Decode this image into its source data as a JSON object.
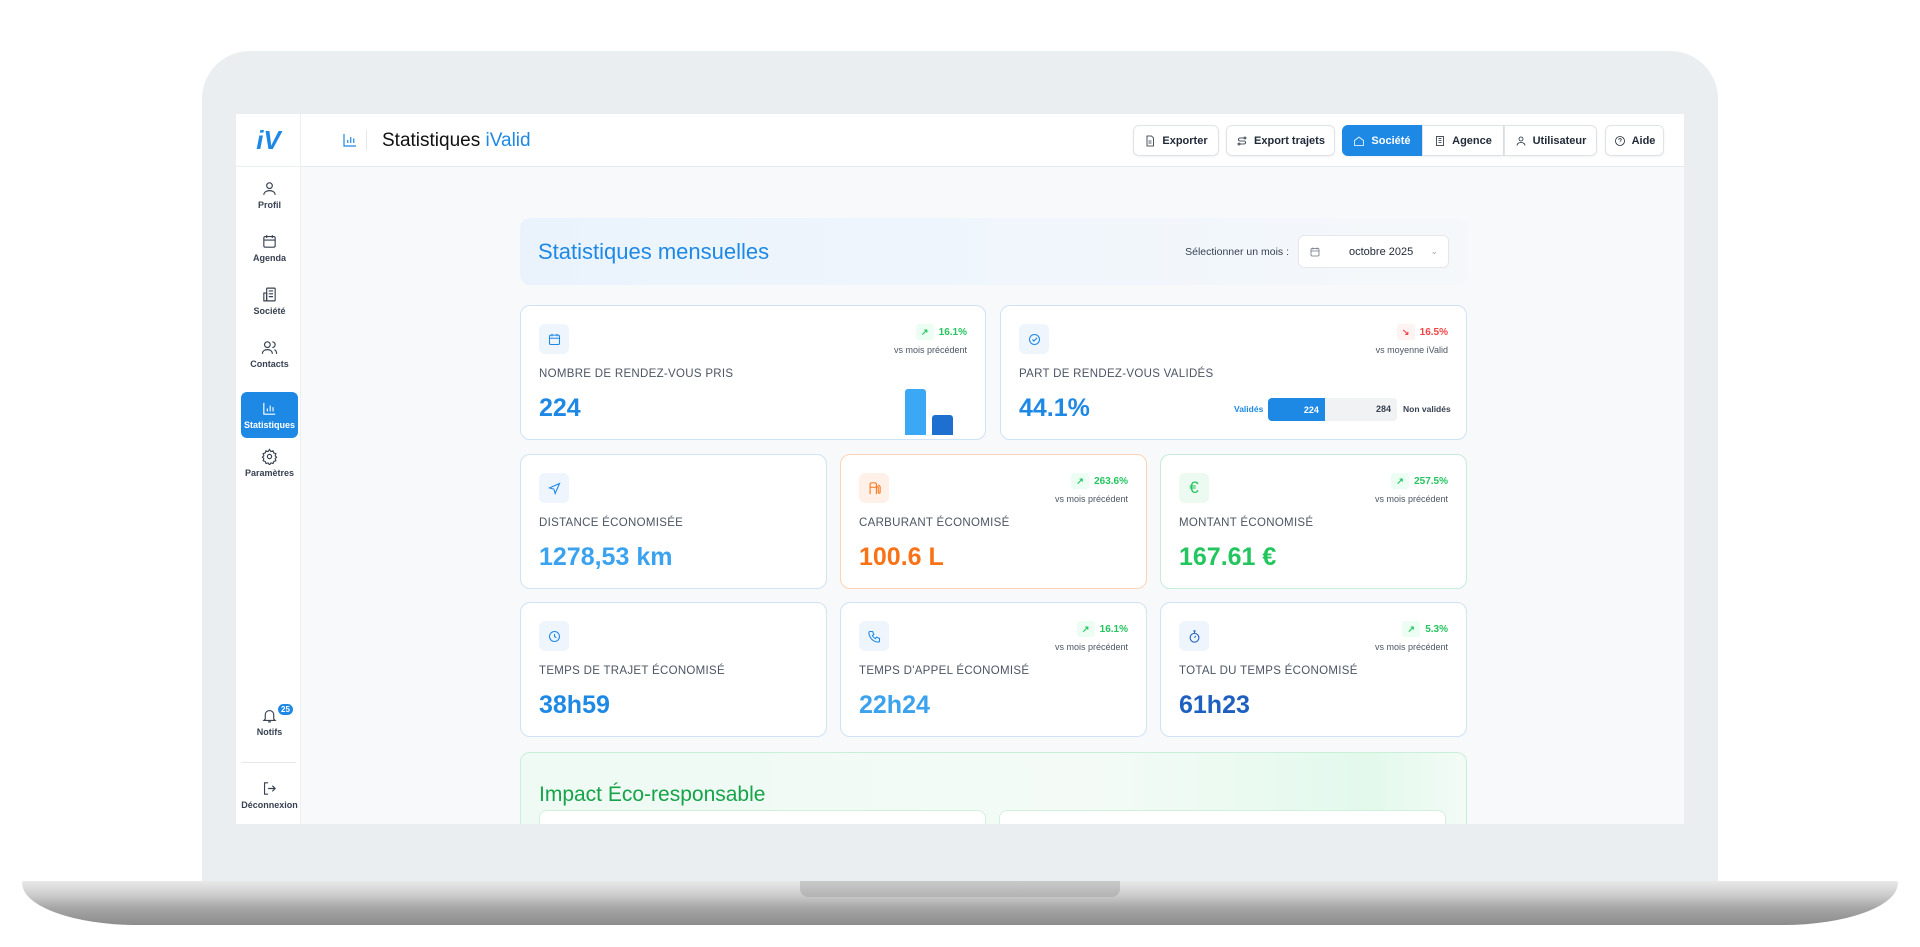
{
  "app": {
    "logo": "iV",
    "title_main": "Statistiques",
    "title_accent": "iValid"
  },
  "sidebar": {
    "items": [
      {
        "label": "Profil",
        "icon": "user-icon"
      },
      {
        "label": "Agenda",
        "icon": "calendar-icon"
      },
      {
        "label": "Société",
        "icon": "building-icon"
      },
      {
        "label": "Contacts",
        "icon": "users-icon"
      },
      {
        "label": "Statistiques",
        "icon": "bar-chart-icon",
        "active": true
      },
      {
        "label": "Paramètres",
        "icon": "gear-icon"
      }
    ],
    "notifs": {
      "label": "Notifs",
      "count": "25"
    },
    "logout": {
      "label": "Déconnexion"
    }
  },
  "header": {
    "export": "Exporter",
    "export_trips": "Export trajets",
    "scope": [
      "Société",
      "Agence",
      "Utilisateur"
    ],
    "scope_selected": "Société",
    "help": "Aide"
  },
  "monthly": {
    "title": "Statistiques mensuelles",
    "month_label": "Sélectionner un mois :",
    "month_value": "octobre 2025"
  },
  "cards": {
    "appointments": {
      "label": "NOMBRE DE RENDEZ-VOUS PRIS",
      "value": "224",
      "trend": "16.1%",
      "trend_dir": "up",
      "sub": "vs mois précédent"
    },
    "validated": {
      "label": "PART DE RENDEZ-VOUS VALIDÉS",
      "value": "44.1%",
      "trend": "16.5%",
      "trend_dir": "down",
      "sub": "vs moyenne iValid",
      "validated_label": "Validés",
      "validated_count": "224",
      "not_validated_label": "Non validés",
      "not_validated_count": "284",
      "validated_fraction": 0.441
    },
    "distance": {
      "label": "DISTANCE ÉCONOMISÉE",
      "value": "1278,53 km"
    },
    "fuel": {
      "label": "CARBURANT ÉCONOMISÉ",
      "value": "100.6 L",
      "trend": "263.6%",
      "sub": "vs mois précédent"
    },
    "amount": {
      "label": "MONTANT ÉCONOMISÉ",
      "value": "167.61 €",
      "trend": "257.5%",
      "sub": "vs mois précédent"
    },
    "trip_time": {
      "label": "TEMPS DE TRAJET ÉCONOMISÉ",
      "value": "38h59"
    },
    "call_time": {
      "label": "TEMPS D'APPEL ÉCONOMISÉ",
      "value": "22h24",
      "trend": "16.1%",
      "sub": "vs mois précédent"
    },
    "total_time": {
      "label": "TOTAL DU TEMPS ÉCONOMISÉ",
      "value": "61h23",
      "trend": "5.3%",
      "sub": "vs mois précédent"
    }
  },
  "eco": {
    "title": "Impact Éco-responsable"
  },
  "colors": {
    "primary": "#1e88e5",
    "orange": "#f97316",
    "green": "#22c55e",
    "red": "#ef4444",
    "eco_green": "#16a34a"
  }
}
